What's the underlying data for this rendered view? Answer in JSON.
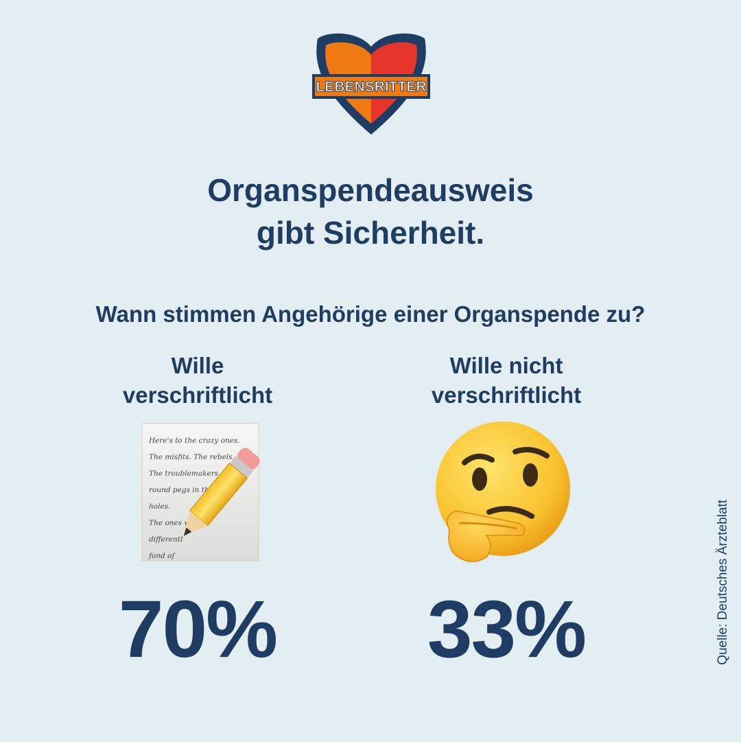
{
  "logo": {
    "text": "LEBENSRITTER"
  },
  "title": {
    "line1": "Organspendeausweis",
    "line2": "gibt Sicherheit."
  },
  "question": "Wann stimmen Angehörige einer Organspende zu?",
  "columns": [
    {
      "label_line1": "Wille",
      "label_line2": "verschriftlicht",
      "icon": "memo-pencil-icon",
      "percent": "70%"
    },
    {
      "label_line1": "Wille nicht",
      "label_line2": "verschriftlicht",
      "icon": "thinking-face-icon",
      "percent": "33%"
    }
  ],
  "memo_lines": [
    "Here's to the crazy ones.",
    "The misfits. The rebels.",
    "The troublemakers. The",
    "round pegs in the",
    "holes.",
    "The ones wh",
    "differentl",
    "fond of"
  ],
  "source": "Quelle: Deutsches Ärzteblatt",
  "colors": {
    "background": "#e2eef1",
    "text": "#1f3d63",
    "logo_orange": "#f07a12",
    "logo_red": "#e8352c",
    "logo_navy": "#1f3d63"
  }
}
